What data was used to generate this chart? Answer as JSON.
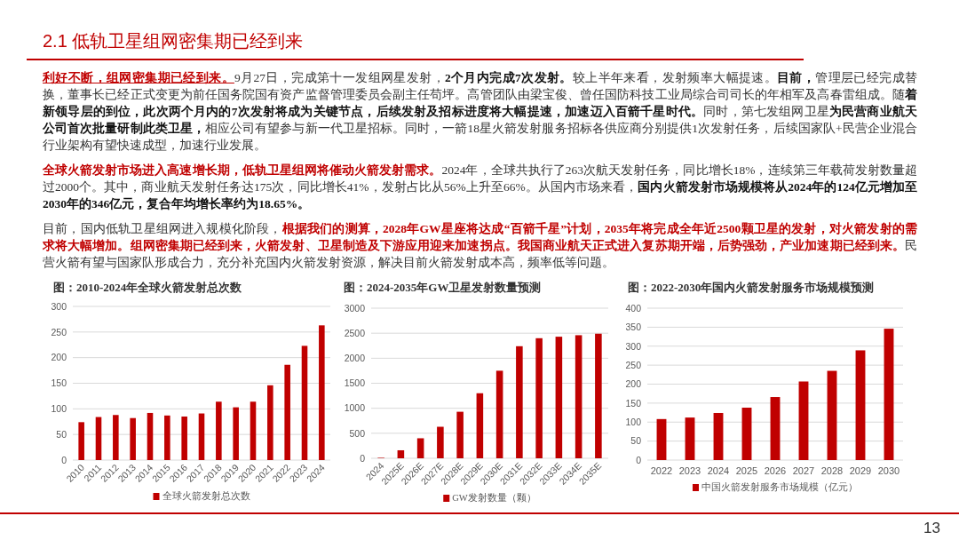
{
  "chart_data": [
    {
      "type": "other",
      "title": "2.1 低轨卫星组网密集期已经到来",
      "annotations": [
        "利好不断，组网密集期已经到来。9月27日，完成第十一发组网星发射，2个月内完成7次发射。较上半年来看，发射频率大幅提速。目前，管理层已经完成替换，董事长已经正式变更为前任国务院国有资产监督管理委员会副主任苟坪。高管团队由梁宝俊、曾任国防科技工业局综合司司长的年相军及高春雷组成。随着新领导层的到位，此次两个月内的7次发射将成为关键节点，后续发射及招标进度将大幅提速，加速迈入百箭千星时代。同时，第七发组网卫星为民营商业航天公司首次批量研制此类卫星，相应公司有望参与新一代卫星招标。同时，一箭18星火箭发射服务招标各供应商分别提供1次发射任务，后续国家队+民营企业混合行业架构有望快速成型，加速行业发展。",
        "全球火箭发射市场进入高速增长期，低轨卫星组网将催动火箭发射需求。2024年，全球共执行了263次航天发射任务，同比增长18%，连续第三年载荷发射数量超过2000个。其中，商业航天发射任务达175次，同比增长41%，发射占比从56%上升至66%。从国内市场来看，国内火箭发射市场规模将从2024年的124亿元增加至2030年的346亿元，复合年均增长率约为18.65%。",
        "目前，国内低轨卫星组网进入规模化阶段，根据我们的测算，2028年GW星座将达成“百箭千星”计划，2035年将完成全年近2500颗卫星的发射，对火箭发射的需求将大幅增加。组网密集期已经到来，火箭发射、卫星制造及下游应用迎来加速拐点。我国商业航天正式进入复苏期开端，后势强劲，产业加速期已经到来。民营火箭有望与国家队形成合力，充分补充国内火箭发射资源，解决目前火箭发射成本高，频率低等问题。",
        "13"
      ]
    },
    {
      "type": "bar",
      "title": "图：2010-2024年全球火箭发射总次数",
      "categories": [
        "2010",
        "2011",
        "2012",
        "2013",
        "2014",
        "2015",
        "2016",
        "2017",
        "2018",
        "2019",
        "2020",
        "2021",
        "2022",
        "2023",
        "2024"
      ],
      "series": [
        {
          "name": "全球火箭发射总次数",
          "color": "#c00000",
          "values": [
            74,
            84,
            88,
            82,
            92,
            87,
            85,
            91,
            114,
            103,
            114,
            146,
            186,
            223,
            263
          ]
        }
      ],
      "ylim": [
        0,
        300
      ],
      "yticks": [
        0,
        50,
        100,
        150,
        200,
        250,
        300
      ],
      "grid": "y",
      "legend": "bottom"
    },
    {
      "type": "bar",
      "title": "图：2024-2035年GW卫星发射数量预测",
      "categories": [
        "2024",
        "2025E",
        "2026E",
        "2027E",
        "2028E",
        "2029E",
        "2030E",
        "2031E",
        "2032E",
        "2033E",
        "2034E",
        "2035E"
      ],
      "series": [
        {
          "name": "GW发射数量（颗）",
          "color": "#c00000",
          "values": [
            10,
            160,
            400,
            630,
            930,
            1300,
            1750,
            2240,
            2400,
            2430,
            2460,
            2490
          ]
        }
      ],
      "ylim": [
        0,
        3000
      ],
      "yticks": [
        0,
        500,
        1000,
        1500,
        2000,
        2500,
        3000
      ],
      "grid": "y",
      "legend": "bottom"
    },
    {
      "type": "bar",
      "title": "图：2022-2030年国内火箭发射服务市场规模预测",
      "categories": [
        "2022",
        "2023",
        "2024",
        "2025",
        "2026",
        "2027",
        "2028",
        "2029",
        "2030"
      ],
      "series": [
        {
          "name": "中国火箭发射服务市场规模（亿元）",
          "color": "#c00000",
          "values": [
            108,
            112,
            124,
            138,
            166,
            207,
            235,
            289,
            346
          ]
        }
      ],
      "ylim": [
        0,
        400
      ],
      "yticks": [
        0,
        50,
        100,
        150,
        200,
        250,
        300,
        350,
        400
      ],
      "grid": "y",
      "legend": "bottom"
    }
  ]
}
